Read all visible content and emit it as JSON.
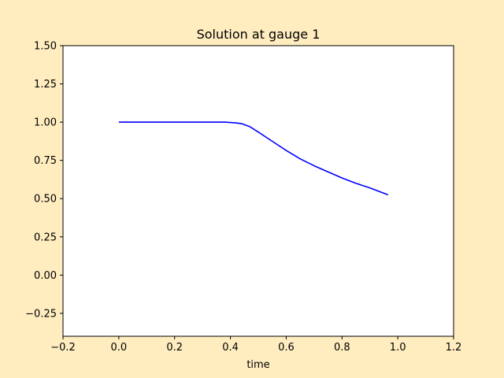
{
  "figure_background": "#ffedc0",
  "chart_data": {
    "type": "line",
    "title": "Solution at gauge 1",
    "xlabel": "time",
    "ylabel": "",
    "xlim": [
      -0.2,
      1.2
    ],
    "ylim": [
      -0.4,
      1.5
    ],
    "x_ticks": [
      -0.2,
      0.0,
      0.2,
      0.4,
      0.6,
      0.8,
      1.0,
      1.2
    ],
    "x_tick_labels": [
      "−0.2",
      "0.0",
      "0.2",
      "0.4",
      "0.6",
      "0.8",
      "1.0",
      "1.2"
    ],
    "y_ticks": [
      -0.25,
      0.0,
      0.25,
      0.5,
      0.75,
      1.0,
      1.25,
      1.5
    ],
    "y_tick_labels": [
      "−0.25",
      "0.00",
      "0.25",
      "0.50",
      "0.75",
      "1.00",
      "1.25",
      "1.50"
    ],
    "grid": false,
    "series": [
      {
        "color": "#0000ff",
        "x": [
          0.0,
          0.1,
          0.2,
          0.3,
          0.38,
          0.42,
          0.44,
          0.47,
          0.5,
          0.55,
          0.6,
          0.65,
          0.7,
          0.75,
          0.8,
          0.85,
          0.9,
          0.965
        ],
        "y": [
          1.0,
          1.0,
          1.0,
          1.0,
          1.0,
          0.995,
          0.99,
          0.97,
          0.935,
          0.875,
          0.815,
          0.76,
          0.715,
          0.675,
          0.635,
          0.6,
          0.57,
          0.525
        ]
      }
    ]
  }
}
